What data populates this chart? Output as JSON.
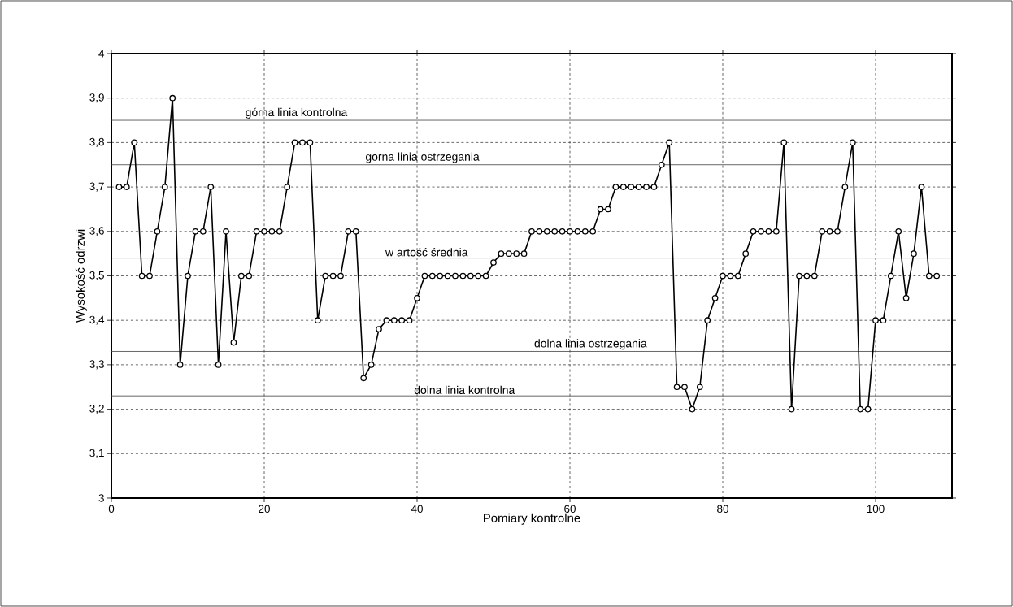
{
  "chart_data": {
    "type": "line",
    "xlabel": "Pomiary kontrolne",
    "ylabel": "Wysokość odrzwi",
    "x": [
      1,
      2,
      3,
      4,
      5,
      6,
      7,
      8,
      9,
      10,
      11,
      12,
      13,
      14,
      15,
      16,
      17,
      18,
      19,
      20,
      21,
      22,
      23,
      24,
      25,
      26,
      27,
      28,
      29,
      30,
      31,
      32,
      33,
      34,
      35,
      36,
      37,
      38,
      39,
      40,
      41,
      42,
      43,
      44,
      45,
      46,
      47,
      48,
      49,
      50,
      51,
      52,
      53,
      54,
      55,
      56,
      57,
      58,
      59,
      60,
      61,
      62,
      63,
      64,
      65,
      66,
      67,
      68,
      69,
      70,
      71,
      72,
      73,
      74,
      75,
      76,
      77,
      78,
      79,
      80,
      81,
      82,
      83,
      84,
      85,
      86,
      87,
      88,
      89,
      90,
      91,
      92,
      93,
      94,
      95,
      96,
      97,
      98,
      99,
      100,
      101,
      102,
      103,
      104,
      105,
      106,
      107,
      108
    ],
    "series": [
      {
        "color": "#000000",
        "values": [
          3.7,
          3.7,
          3.8,
          3.5,
          3.5,
          3.6,
          3.7,
          3.9,
          3.3,
          3.5,
          3.6,
          3.6,
          3.7,
          3.3,
          3.6,
          3.35,
          3.5,
          3.5,
          3.6,
          3.6,
          3.6,
          3.6,
          3.7,
          3.8,
          3.8,
          3.8,
          3.4,
          3.5,
          3.5,
          3.5,
          3.6,
          3.6,
          3.27,
          3.3,
          3.38,
          3.4,
          3.4,
          3.4,
          3.4,
          3.45,
          3.5,
          3.5,
          3.5,
          3.5,
          3.5,
          3.5,
          3.5,
          3.5,
          3.5,
          3.53,
          3.55,
          3.55,
          3.55,
          3.55,
          3.6,
          3.6,
          3.6,
          3.6,
          3.6,
          3.6,
          3.6,
          3.6,
          3.6,
          3.65,
          3.65,
          3.7,
          3.7,
          3.7,
          3.7,
          3.7,
          3.7,
          3.75,
          3.8,
          3.25,
          3.25,
          3.2,
          3.25,
          3.4,
          3.45,
          3.5,
          3.5,
          3.5,
          3.55,
          3.6,
          3.6,
          3.6,
          3.6,
          3.8,
          3.2,
          3.5,
          3.5,
          3.5,
          3.6,
          3.6,
          3.6,
          3.7,
          3.8,
          3.2,
          3.2,
          3.4,
          3.4,
          3.5,
          3.6,
          3.45,
          3.55,
          3.7,
          3.5,
          3.5
        ]
      }
    ],
    "xlim": [
      0,
      110
    ],
    "xticks": [
      0,
      20,
      40,
      60,
      80,
      100
    ],
    "ylim": [
      3,
      4
    ],
    "yticks": [
      3,
      {
        "value": 3.1,
        "label": "3,1"
      },
      {
        "value": 3.2,
        "label": "3,2"
      },
      {
        "value": 3.3,
        "label": "3,3"
      },
      {
        "value": 3.4,
        "label": "3,4"
      },
      {
        "value": 3.5,
        "label": "3,5"
      },
      {
        "value": 3.6,
        "label": "3,6"
      },
      {
        "value": 3.7,
        "label": "3,7"
      },
      {
        "value": 3.8,
        "label": "3,8"
      },
      {
        "value": 3.9,
        "label": "3,9"
      },
      4
    ],
    "ref_lines": [
      {
        "axis": "y",
        "value": 3.85,
        "label": "górna linia kontrolna",
        "color": "#404040"
      },
      {
        "axis": "y",
        "value": 3.75,
        "label": "gorna linia ostrzegania",
        "color": "#404040"
      },
      {
        "axis": "y",
        "value": 3.54,
        "label": "w artość średnia",
        "color": "#404040"
      },
      {
        "axis": "y",
        "value": 3.33,
        "label": "dolna linia ostrzegania",
        "color": "#404040"
      },
      {
        "axis": "y",
        "value": 3.23,
        "label": "dolna linia kontrolna",
        "color": "#404040"
      }
    ],
    "grid": true,
    "marker": "circle",
    "line_style": "solid"
  }
}
